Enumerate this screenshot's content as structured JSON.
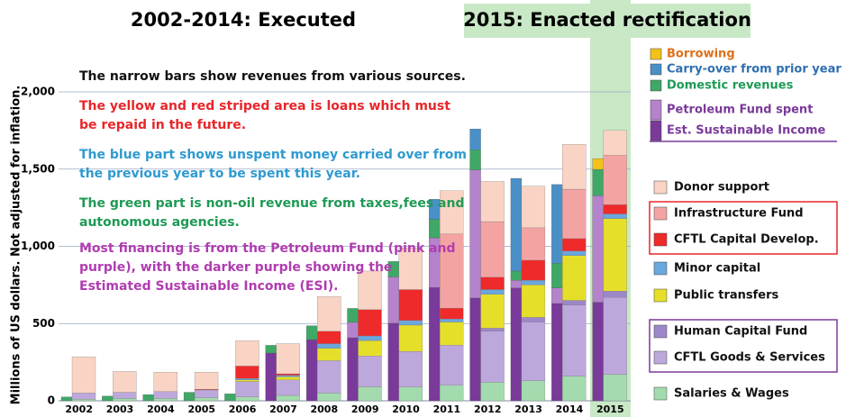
{
  "chart_data": {
    "type": "bar",
    "title": "2002-2014: Executed",
    "subtitle": "2015: Enacted rectification",
    "y_label": "Millions of US dollars.   Not adjusted for inflation.",
    "annotations": [
      {
        "text": "The narrow bars show revenues from various sources.",
        "color": "#111111"
      },
      {
        "text": "The yellow and red striped area is loans which must be repaid in the future.",
        "color": "#e8262a"
      },
      {
        "text": "The blue part shows unspent money carried over from the previous year to be spent this year.",
        "color": "#2e9ad0"
      },
      {
        "text": "The green part is non-oil revenue from taxes,fees and autonomous agencies.",
        "color": "#1e9a55"
      },
      {
        "text": "Most financing is from the Petroleum Fund (pink and purple), with the darker purple showing the Estimated Sustainable Income (ESI).",
        "color": "#b03cb0"
      }
    ],
    "categories": [
      "2002",
      "2003",
      "2004",
      "2005",
      "2006",
      "2007",
      "2008",
      "2009",
      "2010",
      "2011",
      "2012",
      "2013",
      "2014",
      "2015"
    ],
    "ylim": [
      0,
      2000
    ],
    "yticks": [
      0,
      500,
      {
        "value": 1000,
        "label": "1,000"
      },
      {
        "value": 1500,
        "label": "1,500"
      },
      {
        "value": 2000,
        "label": "2,000"
      }
    ],
    "grid": true,
    "revenue_series": [
      {
        "name": "Est. Sustainable Income",
        "color": "#7a3a9a",
        "values": [
          0,
          0,
          0,
          0,
          0,
          309,
          396,
          408,
          502,
          734,
          665,
          730,
          630,
          638
        ]
      },
      {
        "name": "Petroleum Fund spent",
        "color": "#b582cc",
        "values": [
          0,
          0,
          0,
          0,
          0,
          0,
          0,
          100,
          300,
          321,
          830,
          50,
          100,
          690
        ]
      },
      {
        "name": "Domestic revenues",
        "color": "#3fa866",
        "values": [
          25,
          30,
          40,
          55,
          45,
          50,
          90,
          90,
          100,
          120,
          130,
          60,
          160,
          170
        ]
      },
      {
        "name": "Carry-over from prior year",
        "color": "#4a90c8",
        "values": [
          0,
          0,
          0,
          0,
          0,
          0,
          0,
          0,
          0,
          130,
          135,
          600,
          510,
          0
        ]
      },
      {
        "name": "Borrowing",
        "color": "#f2c21b",
        "values": [
          0,
          0,
          0,
          0,
          0,
          0,
          0,
          0,
          0,
          0,
          0,
          0,
          0,
          70
        ]
      }
    ],
    "expenditure_series": [
      {
        "name": "Salaries & Wages",
        "color": "#a3dbae",
        "values": [
          10,
          15,
          15,
          20,
          25,
          35,
          50,
          90,
          90,
          100,
          120,
          130,
          160,
          170
        ]
      },
      {
        "name": "CFTL Goods & Services",
        "color": "#bda8dc",
        "values": [
          40,
          40,
          45,
          50,
          100,
          100,
          210,
          200,
          230,
          260,
          330,
          380,
          460,
          500
        ]
      },
      {
        "name": "Human Capital Fund",
        "color": "#9c88c9",
        "values": [
          0,
          0,
          0,
          0,
          0,
          0,
          0,
          0,
          0,
          0,
          20,
          30,
          30,
          40
        ]
      },
      {
        "name": "Public transfers",
        "color": "#e6df2a",
        "values": [
          0,
          0,
          0,
          0,
          10,
          20,
          80,
          100,
          170,
          150,
          220,
          210,
          290,
          470
        ]
      },
      {
        "name": "Minor capital",
        "color": "#6aa7dc",
        "values": [
          0,
          0,
          0,
          0,
          10,
          10,
          30,
          30,
          30,
          20,
          30,
          30,
          30,
          30
        ]
      },
      {
        "name": "CFTL Capital Develop.",
        "color": "#ee2a2a",
        "values": [
          0,
          0,
          0,
          5,
          80,
          10,
          80,
          170,
          200,
          70,
          80,
          130,
          80,
          60
        ]
      },
      {
        "name": "Infrastructure Fund",
        "color": "#f4a3a3",
        "values": [
          0,
          0,
          0,
          0,
          0,
          0,
          0,
          0,
          0,
          480,
          360,
          210,
          320,
          320
        ]
      },
      {
        "name": "Donor support",
        "color": "#f9d4c4",
        "values": [
          235,
          135,
          125,
          110,
          165,
          195,
          225,
          250,
          270,
          280,
          260,
          270,
          290,
          160
        ]
      }
    ]
  }
}
